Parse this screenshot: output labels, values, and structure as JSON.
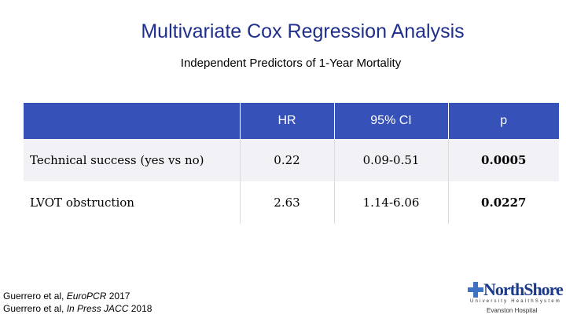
{
  "slide": {
    "title": "Multivariate Cox Regression Analysis",
    "subtitle": "Independent Predictors of 1-Year Mortality"
  },
  "table": {
    "headers": [
      "",
      "HR",
      "95% CI",
      "p"
    ],
    "rows": [
      {
        "predictor": "Technical success (yes vs no)",
        "hr": "0.22",
        "ci": "0.09-0.51",
        "p": "0.0005"
      },
      {
        "predictor": "LVOT obstruction",
        "hr": "2.63",
        "ci": "1.14-6.06",
        "p": "0.0227"
      }
    ]
  },
  "references": {
    "line1_prefix": "Guerrero et al, ",
    "line1_italic": "EuroPCR",
    "line1_suffix": " 2017",
    "line2_prefix": "Guerrero et al, ",
    "line2_italic": "In Press JACC",
    "line2_suffix": " 2018"
  },
  "logo": {
    "name": "NorthShore",
    "system": "University HealthSystem",
    "hospital": "Evanston Hospital"
  },
  "colors": {
    "title": "#1f2f8c",
    "header_bg": "#3651b7",
    "logo_blue": "#1c3a8a",
    "logo_cross": "#3f74c4"
  }
}
